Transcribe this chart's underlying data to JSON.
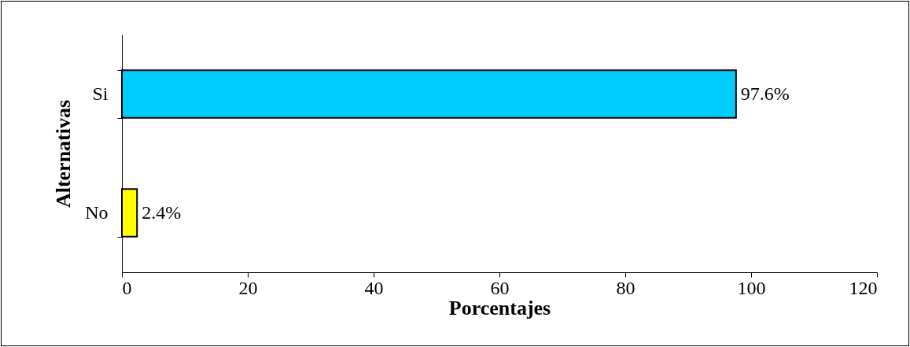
{
  "chart_data": {
    "type": "bar",
    "orientation": "horizontal",
    "xlabel": "Porcentajes",
    "ylabel": "Alternativas",
    "categories": [
      "Si",
      "No"
    ],
    "values": [
      97.6,
      2.4
    ],
    "colors": [
      "#00ccff",
      "#ffff00"
    ],
    "value_labels": [
      "97.6%",
      "2.4%"
    ],
    "xlim": [
      0,
      120
    ],
    "xticks": [
      0,
      20,
      40,
      60,
      80,
      100,
      120
    ]
  }
}
